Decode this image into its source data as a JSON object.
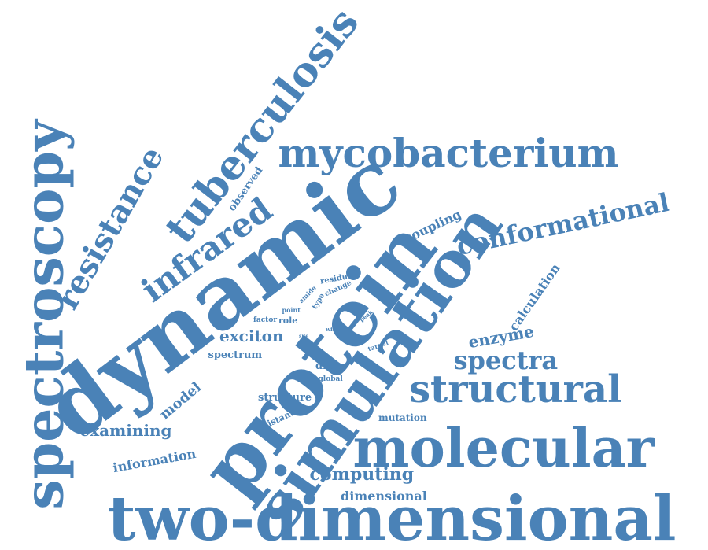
{
  "text_color": "#4a82b7",
  "words": [
    {
      "id": "two-dimensional",
      "text": "two-dimensional"
    },
    {
      "id": "dynamic",
      "text": "dynamic"
    },
    {
      "id": "protein",
      "text": "protein"
    },
    {
      "id": "spectroscopy",
      "text": "spectroscopy"
    },
    {
      "id": "simulation",
      "text": "simulation"
    },
    {
      "id": "molecular",
      "text": "molecular"
    },
    {
      "id": "tuberculosis",
      "text": "tuberculosis"
    },
    {
      "id": "mycobacterium",
      "text": "mycobacterium"
    },
    {
      "id": "structural",
      "text": "structural"
    },
    {
      "id": "infrared",
      "text": "infrared"
    },
    {
      "id": "conformational",
      "text": "conformational"
    },
    {
      "id": "resistance",
      "text": "resistance"
    },
    {
      "id": "spectra",
      "text": "spectra"
    },
    {
      "id": "computing",
      "text": "computing"
    },
    {
      "id": "examining",
      "text": "examining"
    },
    {
      "id": "exciton",
      "text": "exciton"
    },
    {
      "id": "enzyme",
      "text": "enzyme"
    },
    {
      "id": "model",
      "text": "model"
    },
    {
      "id": "calculation",
      "text": "calculation"
    },
    {
      "id": "coupling",
      "text": "coupling"
    },
    {
      "id": "information",
      "text": "information"
    },
    {
      "id": "dimensional",
      "text": "dimensional"
    },
    {
      "id": "spectrum",
      "text": "spectrum"
    },
    {
      "id": "structure",
      "text": "structure"
    },
    {
      "id": "observed",
      "text": "observed"
    },
    {
      "id": "drug",
      "text": "drug"
    },
    {
      "id": "mutation",
      "text": "mutation"
    },
    {
      "id": "resistant",
      "text": "resistant"
    },
    {
      "id": "global",
      "text": "global"
    },
    {
      "id": "residue",
      "text": "residue"
    },
    {
      "id": "change",
      "text": "change"
    },
    {
      "id": "amide",
      "text": "amide"
    },
    {
      "id": "role",
      "text": "role"
    },
    {
      "id": "factor",
      "text": "factor"
    },
    {
      "id": "type",
      "text": "type"
    },
    {
      "id": "point",
      "text": "point"
    },
    {
      "id": "target",
      "text": "target"
    },
    {
      "id": "peak",
      "text": "peak"
    },
    {
      "id": "wild",
      "text": "wild"
    },
    {
      "id": "site",
      "text": "site"
    }
  ]
}
